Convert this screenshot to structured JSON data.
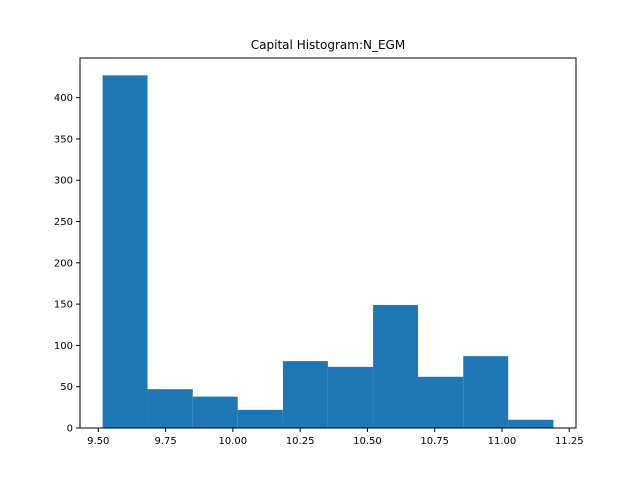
{
  "chart_data": {
    "type": "bar",
    "title": "Capital Histogram:N_EGM",
    "xlabel": "",
    "ylabel": "",
    "bin_edges": [
      9.516,
      9.683,
      9.851,
      10.018,
      10.186,
      10.353,
      10.521,
      10.688,
      10.856,
      11.023,
      11.191
    ],
    "counts": [
      427,
      47,
      38,
      22,
      81,
      74,
      149,
      62,
      87,
      10
    ],
    "xlim": [
      9.432,
      11.275
    ],
    "ylim": [
      0,
      448
    ],
    "xticks": [
      9.5,
      9.75,
      10.0,
      10.25,
      10.5,
      10.75,
      11.0,
      11.25
    ],
    "xtick_labels": [
      "9.50",
      "9.75",
      "10.00",
      "10.25",
      "10.50",
      "10.75",
      "11.00",
      "11.25"
    ],
    "yticks": [
      0,
      50,
      100,
      150,
      200,
      250,
      300,
      350,
      400
    ],
    "ytick_labels": [
      "0",
      "50",
      "100",
      "150",
      "200",
      "250",
      "300",
      "350",
      "400"
    ],
    "grid": false,
    "bar_color": "#1f77b4"
  }
}
